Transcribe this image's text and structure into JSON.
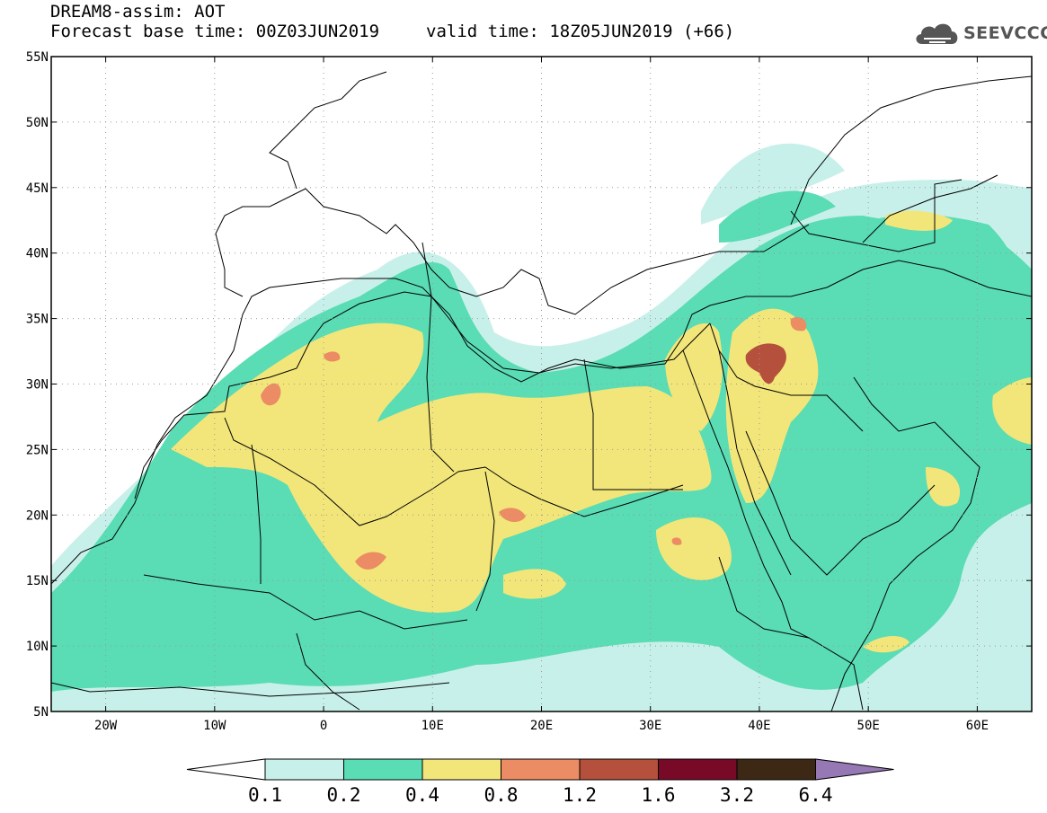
{
  "header": {
    "title": "DREAM8-assim: AOT",
    "base_time": "Forecast base time: 00Z03JUN2019",
    "valid_time": "valid time: 18Z05JUN2019 (+66)"
  },
  "logo": {
    "text": "SEEVCCC",
    "icon": "cloud-icon"
  },
  "axes": {
    "lon_min": -25,
    "lon_max": 65,
    "lat_min": 5,
    "lat_max": 55,
    "lon_ticks": [
      {
        "v": -20,
        "label": "20W"
      },
      {
        "v": -10,
        "label": "10W"
      },
      {
        "v": 0,
        "label": "0"
      },
      {
        "v": 10,
        "label": "10E"
      },
      {
        "v": 20,
        "label": "20E"
      },
      {
        "v": 30,
        "label": "30E"
      },
      {
        "v": 40,
        "label": "40E"
      },
      {
        "v": 50,
        "label": "50E"
      },
      {
        "v": 60,
        "label": "60E"
      }
    ],
    "lat_ticks": [
      {
        "v": 55,
        "label": "55N"
      },
      {
        "v": 50,
        "label": "50N"
      },
      {
        "v": 45,
        "label": "45N"
      },
      {
        "v": 40,
        "label": "40N"
      },
      {
        "v": 35,
        "label": "35N"
      },
      {
        "v": 30,
        "label": "30N"
      },
      {
        "v": 25,
        "label": "25N"
      },
      {
        "v": 20,
        "label": "20N"
      },
      {
        "v": 15,
        "label": "15N"
      },
      {
        "v": 10,
        "label": "10N"
      },
      {
        "v": 5,
        "label": "5N"
      }
    ]
  },
  "colorbar": {
    "labels": [
      "0.1",
      "0.2",
      "0.4",
      "0.8",
      "1.2",
      "1.6",
      "3.2",
      "6.4"
    ],
    "colors": [
      "#c8f0ea",
      "#5adcb4",
      "#f2e67a",
      "#eb8c64",
      "#b4503c",
      "#780a28",
      "#3c2814",
      "#9678b4"
    ],
    "below_color": "#ffffff"
  },
  "chart_data": {
    "type": "map",
    "variable": "AOT",
    "levels": [
      0.1,
      0.2,
      0.4,
      0.8,
      1.2,
      1.6,
      3.2,
      6.4
    ]
  }
}
